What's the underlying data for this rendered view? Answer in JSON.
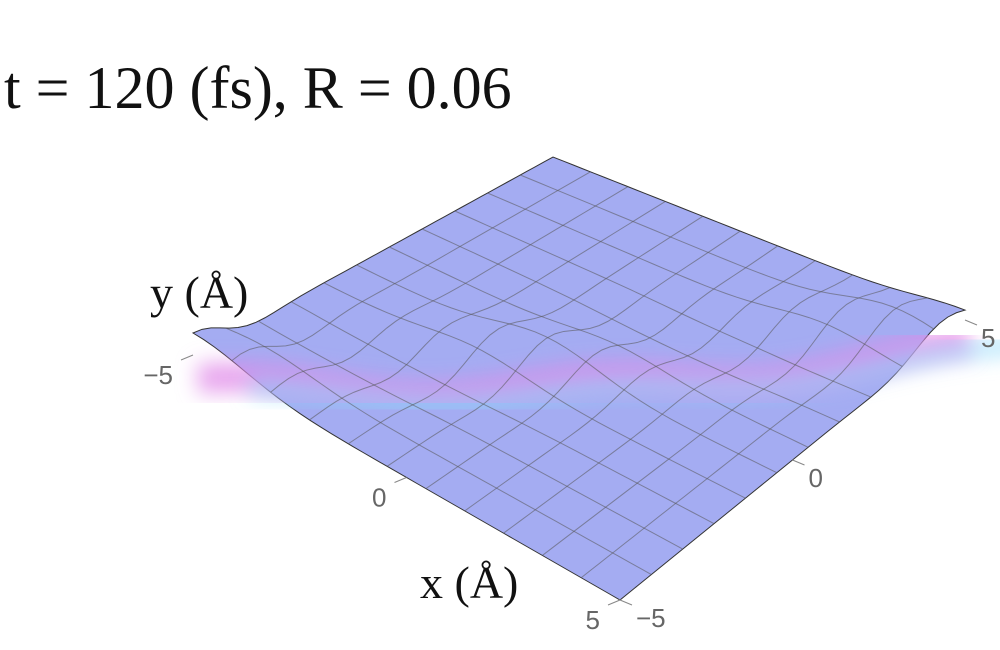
{
  "chart_data": {
    "type": "surface",
    "title": "t = 120 (fs), R = 0.06",
    "xlabel": "x (Å)",
    "ylabel": "y (Å)",
    "xlim": [
      -5,
      5
    ],
    "ylim": [
      -5,
      5
    ],
    "xticks": [
      {
        "value": -5,
        "label": "−5"
      },
      0,
      5
    ],
    "yticks": [
      {
        "value": -5,
        "label": "−5"
      },
      0,
      5
    ],
    "color": "#a4acf2"
  }
}
